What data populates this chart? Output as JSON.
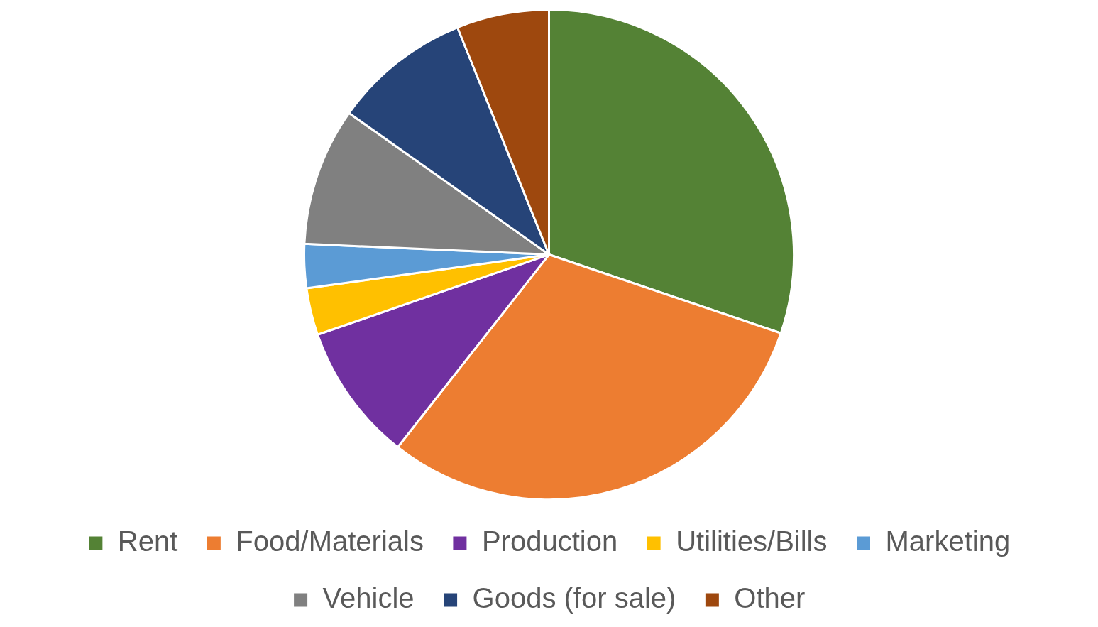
{
  "chart_data": {
    "type": "pie",
    "categories": [
      "Rent",
      "Food/Materials",
      "Production",
      "Utilities/Bills",
      "Marketing",
      "Vehicle",
      "Goods (for sale)",
      "Other"
    ],
    "values": [
      30.2,
      30.4,
      9.1,
      3.1,
      2.9,
      9.1,
      9.1,
      6.1
    ],
    "colors": [
      "#548235",
      "#ed7d31",
      "#7030a0",
      "#ffc000",
      "#5b9bd5",
      "#808080",
      "#264478",
      "#9e480e"
    ],
    "legend": "bottom"
  }
}
